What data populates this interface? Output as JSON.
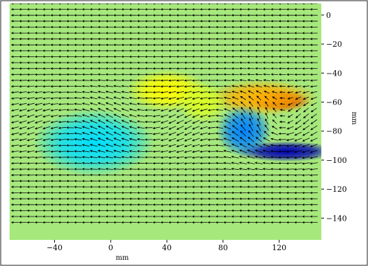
{
  "chart_data": {
    "type": "heatmap",
    "subtype": "vector-field-over-color-map",
    "title": "",
    "xlabel": "mm",
    "ylabel": "mm",
    "xlim": [
      -72,
      150
    ],
    "ylim": [
      -155,
      8
    ],
    "x_ticks": [
      -40,
      0,
      40,
      80,
      120
    ],
    "y_ticks": [
      0,
      -20,
      -40,
      -60,
      -80,
      -100,
      -120,
      -140
    ],
    "x_tick_labels": [
      "−40",
      "0",
      "40",
      "80",
      "120"
    ],
    "y_tick_labels": [
      "0",
      "−20",
      "−40",
      "−60",
      "−80",
      "−100",
      "−120",
      "−140"
    ],
    "grid": false,
    "colormap": "jet",
    "background_color": "#a6e87c",
    "background_value": 0,
    "color_range": [
      -1,
      1
    ],
    "features": [
      {
        "kind": "positive",
        "x": 120,
        "y": -59,
        "sx": 12,
        "sy": 4,
        "value": 1.0
      },
      {
        "kind": "positive",
        "x": 108,
        "y": -57,
        "sx": 22,
        "sy": 7,
        "value": 0.45
      },
      {
        "kind": "negative",
        "x": 125,
        "y": -94,
        "sx": 20,
        "sy": 4,
        "value": -1.0
      },
      {
        "kind": "negative",
        "x": 95,
        "y": -80,
        "sx": 11,
        "sy": 10,
        "value": -0.55
      },
      {
        "kind": "negative",
        "x": -12,
        "y": -88,
        "sx": 24,
        "sy": 13,
        "value": -0.35
      },
      {
        "kind": "weak-positive",
        "x": 40,
        "y": -52,
        "sx": 16,
        "sy": 8,
        "value": 0.28
      },
      {
        "kind": "weak-positive",
        "x": 65,
        "y": -60,
        "sx": 10,
        "sy": 8,
        "value": 0.2
      }
    ],
    "vector_field": {
      "x_start": -68,
      "x_step": 5.6,
      "nx": 39,
      "y_start": 8,
      "y_step": -4.08,
      "ny": 38,
      "base_u": -1,
      "base_v": 0,
      "description": "uniform leftward flow with wavy deflections between y -50 and -100 mm and a vortex near x 100–140 mm, y -60 to -95 mm"
    }
  }
}
